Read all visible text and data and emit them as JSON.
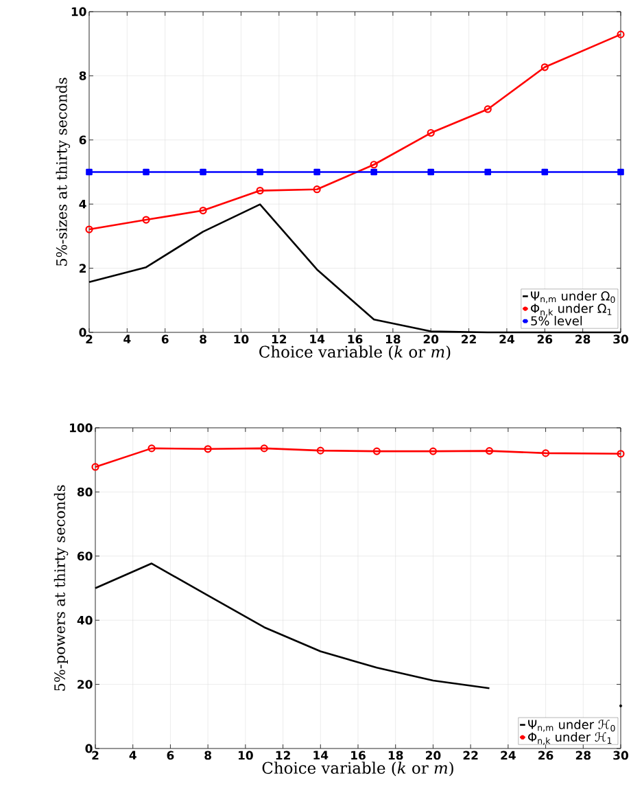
{
  "chart_data": [
    {
      "type": "line",
      "xlabel": "Choice variable (*k* or *m*)",
      "ylabel": "5%-sizes at thirty seconds",
      "x": [
        2,
        5,
        8,
        11,
        14,
        17,
        20,
        23,
        26,
        30
      ],
      "xlim": [
        2,
        30
      ],
      "ylim": [
        0,
        10
      ],
      "xticks": [
        2,
        4,
        6,
        8,
        10,
        12,
        14,
        16,
        18,
        20,
        22,
        24,
        26,
        28,
        30
      ],
      "yticks": [
        0,
        2,
        4,
        6,
        8,
        10
      ],
      "grid": true,
      "legend": "bottom right",
      "series": [
        {
          "name": "Ψ$_{n,m}$ under Ω$_{0}$",
          "color": "#000000",
          "marker": "none",
          "values": [
            1.57,
            2.03,
            3.14,
            3.99,
            1.96,
            0.4,
            0.03,
            0,
            0,
            0
          ]
        },
        {
          "name": "Φ$_{n,k}$ under Ω$_{1}$",
          "color": "#ff0000",
          "marker": "circle",
          "values": [
            3.21,
            3.51,
            3.8,
            4.42,
            4.46,
            5.23,
            6.22,
            6.96,
            8.27,
            9.29
          ]
        },
        {
          "name": "5% level",
          "color": "#0000ff",
          "marker": "square",
          "values": [
            5,
            5,
            5,
            5,
            5,
            5,
            5,
            5,
            5,
            5
          ]
        }
      ]
    },
    {
      "type": "line",
      "xlabel": "Choice variable (*k* or *m*)",
      "ylabel": "5%-powers at thirty seconds",
      "x": [
        2,
        5,
        8,
        11,
        14,
        17,
        20,
        23,
        26,
        30
      ],
      "xlim": [
        2,
        30
      ],
      "ylim": [
        0,
        100
      ],
      "xticks": [
        2,
        4,
        6,
        8,
        10,
        12,
        14,
        16,
        18,
        20,
        22,
        24,
        26,
        28,
        30
      ],
      "yticks": [
        0,
        20,
        40,
        60,
        80,
        100
      ],
      "grid": true,
      "legend": "bottom right",
      "series": [
        {
          "name": "Ψ$_{n,m}$ under ℋ$_{0}$",
          "color": "#000000",
          "marker": "none",
          "values": [
            50.0,
            57.7,
            47.7,
            37.8,
            30.3,
            25.2,
            21.2,
            18.8,
            null,
            13.3
          ]
        },
        {
          "name": "Φ$_{n,k}$ under ℋ$_{1}$",
          "color": "#ff0000",
          "marker": "circle",
          "values": [
            87.8,
            93.6,
            93.4,
            93.6,
            92.9,
            92.7,
            92.7,
            92.8,
            92.1,
            91.9
          ]
        }
      ]
    }
  ]
}
